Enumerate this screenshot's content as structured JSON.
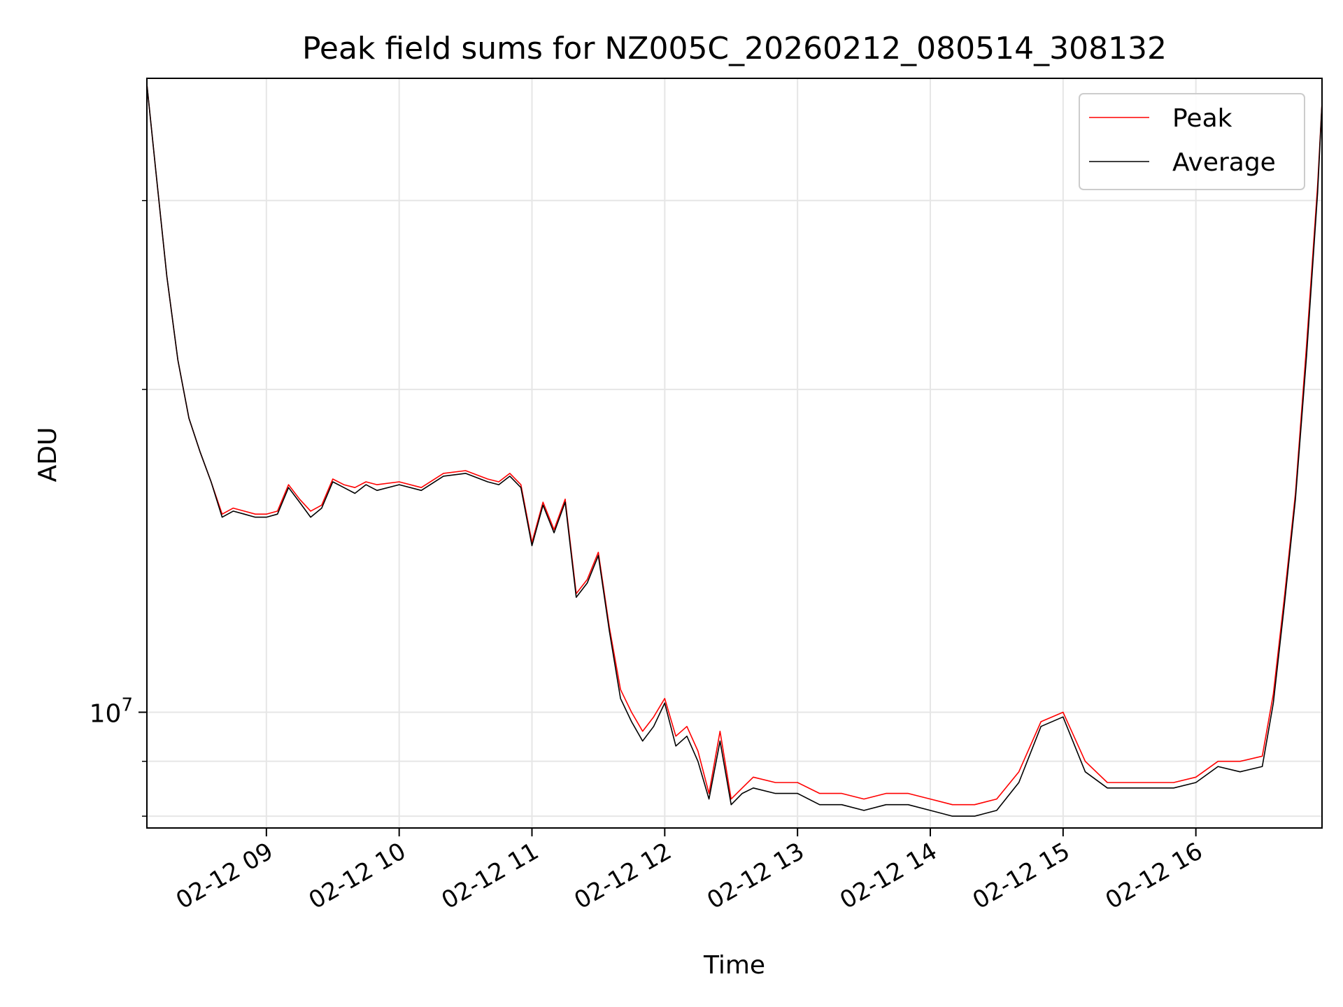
{
  "chart_data": {
    "type": "line",
    "title": "Peak field sums for NZ005C_20260212_080514_308132",
    "xlabel": "Time",
    "ylabel": "ADU",
    "y_scale": "log",
    "grid": true,
    "legend_position": "top-right",
    "xlim": [
      "2026-02-12 08:06",
      "2026-02-12 16:57"
    ],
    "ylim": [
      7800000,
      39000000
    ],
    "x_ticks": [
      {
        "value": "2026-02-12 09:00",
        "label": "02-12 09"
      },
      {
        "value": "2026-02-12 10:00",
        "label": "02-12 10"
      },
      {
        "value": "2026-02-12 11:00",
        "label": "02-12 11"
      },
      {
        "value": "2026-02-12 12:00",
        "label": "02-12 12"
      },
      {
        "value": "2026-02-12 13:00",
        "label": "02-12 13"
      },
      {
        "value": "2026-02-12 14:00",
        "label": "02-12 14"
      },
      {
        "value": "2026-02-12 15:00",
        "label": "02-12 15"
      },
      {
        "value": "2026-02-12 16:00",
        "label": "02-12 16"
      }
    ],
    "y_ticks": [
      {
        "value": 10000000,
        "label_base": "10",
        "label_exp": "7"
      }
    ],
    "series": [
      {
        "name": "Peak",
        "color": "#ff0000",
        "x": [
          "2026-02-12 08:06",
          "2026-02-12 08:10",
          "2026-02-12 08:15",
          "2026-02-12 08:20",
          "2026-02-12 08:25",
          "2026-02-12 08:30",
          "2026-02-12 08:35",
          "2026-02-12 08:40",
          "2026-02-12 08:45",
          "2026-02-12 08:50",
          "2026-02-12 08:55",
          "2026-02-12 09:00",
          "2026-02-12 09:05",
          "2026-02-12 09:10",
          "2026-02-12 09:15",
          "2026-02-12 09:20",
          "2026-02-12 09:25",
          "2026-02-12 09:30",
          "2026-02-12 09:35",
          "2026-02-12 09:40",
          "2026-02-12 09:45",
          "2026-02-12 09:50",
          "2026-02-12 10:00",
          "2026-02-12 10:10",
          "2026-02-12 10:20",
          "2026-02-12 10:30",
          "2026-02-12 10:40",
          "2026-02-12 10:45",
          "2026-02-12 10:50",
          "2026-02-12 10:55",
          "2026-02-12 11:00",
          "2026-02-12 11:05",
          "2026-02-12 11:10",
          "2026-02-12 11:15",
          "2026-02-12 11:20",
          "2026-02-12 11:25",
          "2026-02-12 11:30",
          "2026-02-12 11:35",
          "2026-02-12 11:40",
          "2026-02-12 11:45",
          "2026-02-12 11:50",
          "2026-02-12 11:55",
          "2026-02-12 12:00",
          "2026-02-12 12:05",
          "2026-02-12 12:10",
          "2026-02-12 12:15",
          "2026-02-12 12:20",
          "2026-02-12 12:25",
          "2026-02-12 12:30",
          "2026-02-12 12:35",
          "2026-02-12 12:40",
          "2026-02-12 12:50",
          "2026-02-12 13:00",
          "2026-02-12 13:10",
          "2026-02-12 13:20",
          "2026-02-12 13:30",
          "2026-02-12 13:40",
          "2026-02-12 13:50",
          "2026-02-12 14:00",
          "2026-02-12 14:10",
          "2026-02-12 14:20",
          "2026-02-12 14:30",
          "2026-02-12 14:40",
          "2026-02-12 14:50",
          "2026-02-12 15:00",
          "2026-02-12 15:10",
          "2026-02-12 15:20",
          "2026-02-12 15:30",
          "2026-02-12 15:40",
          "2026-02-12 15:50",
          "2026-02-12 16:00",
          "2026-02-12 16:10",
          "2026-02-12 16:20",
          "2026-02-12 16:30",
          "2026-02-12 16:35",
          "2026-02-12 16:40",
          "2026-02-12 16:45",
          "2026-02-12 16:50",
          "2026-02-12 16:55",
          "2026-02-12 16:57"
        ],
        "y": [
          38500000,
          32000000,
          25500000,
          21300000,
          18800000,
          17500000,
          16400000,
          15300000,
          15500000,
          15400000,
          15300000,
          15300000,
          15400000,
          16300000,
          15800000,
          15400000,
          15600000,
          16500000,
          16300000,
          16200000,
          16400000,
          16300000,
          16400000,
          16200000,
          16700000,
          16800000,
          16500000,
          16400000,
          16700000,
          16300000,
          14400000,
          15700000,
          14800000,
          15800000,
          12900000,
          13300000,
          14100000,
          12000000,
          10500000,
          10000000,
          9600000,
          9900000,
          10300000,
          9500000,
          9700000,
          9200000,
          8400000,
          9600000,
          8300000,
          8500000,
          8700000,
          8600000,
          8600000,
          8400000,
          8400000,
          8300000,
          8400000,
          8400000,
          8300000,
          8200000,
          8200000,
          8300000,
          8800000,
          9800000,
          10000000,
          9000000,
          8600000,
          8600000,
          8600000,
          8600000,
          8700000,
          9000000,
          9000000,
          9100000,
          10400000,
          12800000,
          16000000,
          22000000,
          31000000,
          37000000
        ]
      },
      {
        "name": "Average",
        "color": "#000000",
        "x": [
          "2026-02-12 08:06",
          "2026-02-12 08:10",
          "2026-02-12 08:15",
          "2026-02-12 08:20",
          "2026-02-12 08:25",
          "2026-02-12 08:30",
          "2026-02-12 08:35",
          "2026-02-12 08:40",
          "2026-02-12 08:45",
          "2026-02-12 08:50",
          "2026-02-12 08:55",
          "2026-02-12 09:00",
          "2026-02-12 09:05",
          "2026-02-12 09:10",
          "2026-02-12 09:15",
          "2026-02-12 09:20",
          "2026-02-12 09:25",
          "2026-02-12 09:30",
          "2026-02-12 09:35",
          "2026-02-12 09:40",
          "2026-02-12 09:45",
          "2026-02-12 09:50",
          "2026-02-12 10:00",
          "2026-02-12 10:10",
          "2026-02-12 10:20",
          "2026-02-12 10:30",
          "2026-02-12 10:40",
          "2026-02-12 10:45",
          "2026-02-12 10:50",
          "2026-02-12 10:55",
          "2026-02-12 11:00",
          "2026-02-12 11:05",
          "2026-02-12 11:10",
          "2026-02-12 11:15",
          "2026-02-12 11:20",
          "2026-02-12 11:25",
          "2026-02-12 11:30",
          "2026-02-12 11:35",
          "2026-02-12 11:40",
          "2026-02-12 11:45",
          "2026-02-12 11:50",
          "2026-02-12 11:55",
          "2026-02-12 12:00",
          "2026-02-12 12:05",
          "2026-02-12 12:10",
          "2026-02-12 12:15",
          "2026-02-12 12:20",
          "2026-02-12 12:25",
          "2026-02-12 12:30",
          "2026-02-12 12:35",
          "2026-02-12 12:40",
          "2026-02-12 12:50",
          "2026-02-12 13:00",
          "2026-02-12 13:10",
          "2026-02-12 13:20",
          "2026-02-12 13:30",
          "2026-02-12 13:40",
          "2026-02-12 13:50",
          "2026-02-12 14:00",
          "2026-02-12 14:10",
          "2026-02-12 14:20",
          "2026-02-12 14:30",
          "2026-02-12 14:40",
          "2026-02-12 14:50",
          "2026-02-12 15:00",
          "2026-02-12 15:10",
          "2026-02-12 15:20",
          "2026-02-12 15:30",
          "2026-02-12 15:40",
          "2026-02-12 15:50",
          "2026-02-12 16:00",
          "2026-02-12 16:10",
          "2026-02-12 16:20",
          "2026-02-12 16:30",
          "2026-02-12 16:35",
          "2026-02-12 16:40",
          "2026-02-12 16:45",
          "2026-02-12 16:50",
          "2026-02-12 16:55",
          "2026-02-12 16:57"
        ],
        "y": [
          38500000,
          32000000,
          25500000,
          21300000,
          18800000,
          17500000,
          16400000,
          15200000,
          15400000,
          15300000,
          15200000,
          15200000,
          15300000,
          16200000,
          15700000,
          15200000,
          15500000,
          16400000,
          16200000,
          16000000,
          16300000,
          16100000,
          16300000,
          16100000,
          16600000,
          16700000,
          16400000,
          16300000,
          16600000,
          16200000,
          14300000,
          15600000,
          14700000,
          15700000,
          12800000,
          13200000,
          14000000,
          11900000,
          10300000,
          9800000,
          9400000,
          9700000,
          10200000,
          9300000,
          9500000,
          9000000,
          8300000,
          9400000,
          8200000,
          8400000,
          8500000,
          8400000,
          8400000,
          8200000,
          8200000,
          8100000,
          8200000,
          8200000,
          8100000,
          8000000,
          8000000,
          8100000,
          8600000,
          9700000,
          9900000,
          8800000,
          8500000,
          8500000,
          8500000,
          8500000,
          8600000,
          8900000,
          8800000,
          8900000,
          10200000,
          12600000,
          15800000,
          21500000,
          30500000,
          37000000
        ]
      }
    ]
  }
}
